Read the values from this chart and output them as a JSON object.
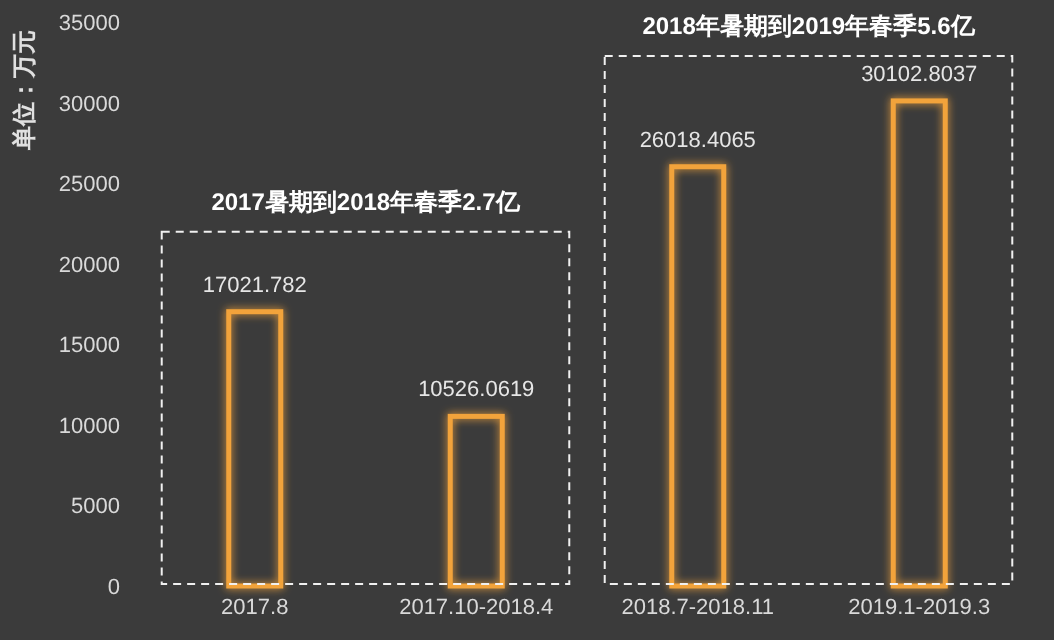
{
  "chart_data": {
    "type": "bar",
    "ylabel": "单位：万元",
    "categories": [
      "2017.8",
      "2017.10-2018.4",
      "2018.7-2018.11",
      "2019.1-2019.3"
    ],
    "values": [
      17021.782,
      10526.0619,
      26018.4065,
      30102.8037
    ],
    "color": "#f2a33a",
    "ylim": [
      0,
      35000
    ],
    "yticks": [
      0,
      5000,
      10000,
      15000,
      20000,
      25000,
      30000,
      35000
    ],
    "data_labels": true,
    "grid": false,
    "annotations": [
      "2017暑期到2018年春季2.7亿",
      "2018年暑期到2019年春季5.6亿"
    ]
  }
}
